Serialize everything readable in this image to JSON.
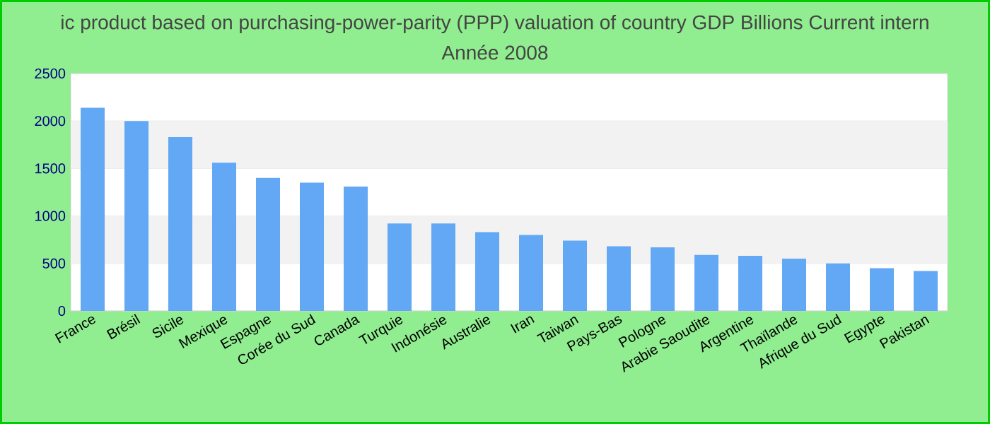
{
  "chart_data": {
    "type": "bar",
    "title": "ic product based on purchasing-power-parity (PPP) valuation of country GDP Billions Current intern",
    "subtitle": "Année 2008",
    "categories": [
      "France",
      "Brésil",
      "Sicile",
      "Mexique",
      "Espagne",
      "Corée du Sud",
      "Canada",
      "Turquie",
      "Indonésie",
      "Australie",
      "Iran",
      "Taiwan",
      "Pays-Bas",
      "Pologne",
      "Arabie Saoudite",
      "Argentine",
      "Thaïlande",
      "Afrique du Sud",
      "Egypte",
      "Pakistan"
    ],
    "values": [
      2140,
      2000,
      1830,
      1560,
      1400,
      1350,
      1310,
      920,
      920,
      830,
      800,
      740,
      680,
      670,
      590,
      580,
      550,
      500,
      450,
      420
    ],
    "color": "#62a8f4",
    "ylim": [
      0,
      2500
    ],
    "yticks": [
      0,
      500,
      1000,
      1500,
      2000,
      2500
    ],
    "grid": "y"
  }
}
